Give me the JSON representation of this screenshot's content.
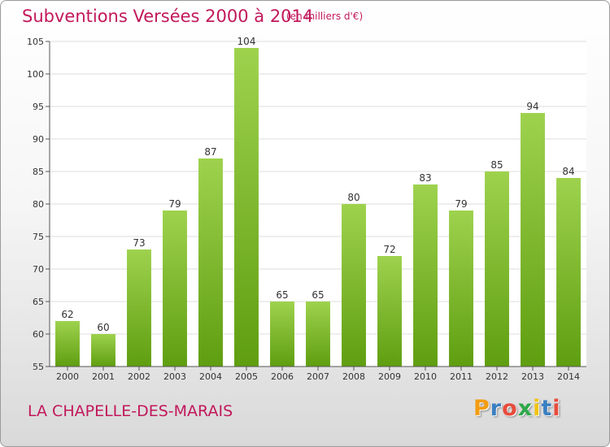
{
  "title": "Subventions Versées 2000 à 2014",
  "unit": "(en milliers d'€)",
  "commune": "LA CHAPELLE-DES-MARAIS",
  "logo": {
    "text": "Proxiti",
    "colors": [
      "#f39c12",
      "#3a7fc1",
      "#e74c3c",
      "#2ea84a",
      "#f1c40f",
      "#3a7fc1",
      "#e74c3c"
    ]
  },
  "colors": {
    "accent": "#c2185b",
    "bar_top": "#9ed24e",
    "bar_bottom": "#5f9e10",
    "grid": "#dddddd"
  },
  "chart_data": {
    "type": "bar",
    "title": "Subventions Versées 2000 à 2014",
    "xlabel": "",
    "ylabel": "",
    "categories": [
      "2000",
      "2001",
      "2002",
      "2003",
      "2004",
      "2005",
      "2006",
      "2007",
      "2008",
      "2009",
      "2010",
      "2011",
      "2012",
      "2013",
      "2014"
    ],
    "values": [
      62,
      60,
      73,
      79,
      87,
      104,
      65,
      65,
      80,
      72,
      83,
      79,
      85,
      94,
      84
    ],
    "ylim": [
      55,
      105
    ],
    "yticks": [
      55,
      60,
      65,
      70,
      75,
      80,
      85,
      90,
      95,
      100,
      105
    ],
    "grid": true,
    "legend": "none"
  }
}
